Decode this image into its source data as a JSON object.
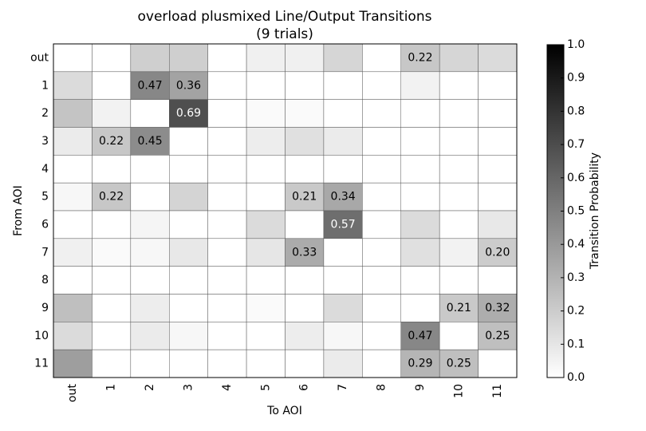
{
  "chart_data": {
    "type": "heatmap",
    "title": [
      "overload plusmixed Line/Output Transitions",
      "(9 trials)"
    ],
    "x_label": "To AOI",
    "y_label": "From AOI",
    "colorbar_label": "Transition Probability",
    "columns": [
      "out",
      "1",
      "2",
      "3",
      "4",
      "5",
      "6",
      "7",
      "8",
      "9",
      "10",
      "11"
    ],
    "rows": [
      "out",
      "1",
      "2",
      "3",
      "4",
      "5",
      "6",
      "7",
      "8",
      "9",
      "10",
      "11"
    ],
    "values": [
      [
        0,
        0,
        0.19,
        0.19,
        0,
        0.06,
        0.06,
        0.16,
        0,
        0.22,
        0.16,
        0.14
      ],
      [
        0.14,
        0,
        0.47,
        0.36,
        0,
        0,
        0,
        0,
        0,
        0.05,
        0,
        0
      ],
      [
        0.23,
        0.05,
        0,
        0.69,
        0,
        0.02,
        0.02,
        0,
        0,
        0,
        0,
        0
      ],
      [
        0.08,
        0.22,
        0.45,
        0,
        0,
        0.07,
        0.12,
        0.08,
        0,
        0,
        0,
        0
      ],
      [
        0,
        0,
        0,
        0,
        0,
        0,
        0,
        0,
        0,
        0,
        0,
        0
      ],
      [
        0.03,
        0.22,
        0,
        0.17,
        0,
        0,
        0.21,
        0.34,
        0,
        0,
        0,
        0
      ],
      [
        0,
        0,
        0.04,
        0,
        0,
        0.14,
        0,
        0.57,
        0,
        0.14,
        0,
        0.09
      ],
      [
        0.06,
        0.02,
        0.03,
        0.09,
        0,
        0.1,
        0.33,
        0,
        0,
        0.12,
        0.05,
        0.2
      ],
      [
        0,
        0,
        0,
        0,
        0,
        0,
        0,
        0,
        0,
        0,
        0,
        0
      ],
      [
        0.25,
        0,
        0.07,
        0,
        0,
        0.02,
        0,
        0.14,
        0,
        0,
        0.21,
        0.32
      ],
      [
        0.14,
        0,
        0.08,
        0.03,
        0,
        0,
        0.07,
        0.03,
        0,
        0.47,
        0,
        0.25
      ],
      [
        0.38,
        0,
        0,
        0,
        0,
        0,
        0,
        0.08,
        0,
        0.29,
        0.25,
        0
      ]
    ],
    "value_labels": [
      [
        null,
        null,
        null,
        null,
        null,
        null,
        null,
        null,
        null,
        "0.22",
        null,
        null
      ],
      [
        null,
        null,
        "0.47",
        "0.36",
        null,
        null,
        null,
        null,
        null,
        null,
        null,
        null
      ],
      [
        null,
        null,
        null,
        "0.69",
        null,
        null,
        null,
        null,
        null,
        null,
        null,
        null
      ],
      [
        null,
        "0.22",
        "0.45",
        null,
        null,
        null,
        null,
        null,
        null,
        null,
        null,
        null
      ],
      [
        null,
        null,
        null,
        null,
        null,
        null,
        null,
        null,
        null,
        null,
        null,
        null
      ],
      [
        null,
        "0.22",
        null,
        null,
        null,
        null,
        "0.21",
        "0.34",
        null,
        null,
        null,
        null
      ],
      [
        null,
        null,
        null,
        null,
        null,
        null,
        null,
        "0.57",
        null,
        null,
        null,
        null
      ],
      [
        null,
        null,
        null,
        null,
        null,
        null,
        "0.33",
        null,
        null,
        null,
        null,
        "0.20"
      ],
      [
        null,
        null,
        null,
        null,
        null,
        null,
        null,
        null,
        null,
        null,
        null,
        null
      ],
      [
        null,
        null,
        null,
        null,
        null,
        null,
        null,
        null,
        null,
        null,
        "0.21",
        "0.32"
      ],
      [
        null,
        null,
        null,
        null,
        null,
        null,
        null,
        null,
        null,
        "0.47",
        null,
        "0.25"
      ],
      [
        null,
        null,
        null,
        null,
        null,
        null,
        null,
        null,
        null,
        "0.29",
        "0.25",
        null
      ]
    ],
    "colormap": "gray_r",
    "vlim": [
      0,
      1
    ],
    "vticks": [
      {
        "value": 0,
        "label": "0.0"
      },
      0.1,
      0.2,
      0.3,
      0.4,
      0.5,
      0.6,
      0.7,
      0.8,
      0.9,
      {
        "value": 1,
        "label": "1.0"
      }
    ]
  }
}
